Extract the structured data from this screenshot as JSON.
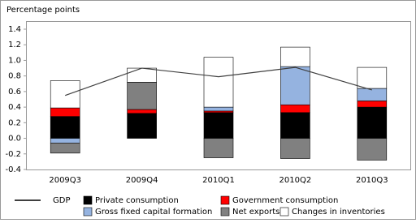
{
  "chart_data": {
    "type": "bar",
    "y_label": "Percentage points",
    "categories": [
      "2009Q3",
      "2009Q4",
      "2010Q1",
      "2010Q2",
      "2010Q3"
    ],
    "series": [
      {
        "name": "Private consumption",
        "color": "#000000",
        "values": [
          0.28,
          0.32,
          0.33,
          0.33,
          0.4
        ]
      },
      {
        "name": "Government  consumption",
        "color": "#ff0000",
        "values": [
          0.11,
          0.05,
          0.02,
          0.1,
          0.08
        ]
      },
      {
        "name": "Gross fixed capital formation",
        "color": "#95b3e0",
        "values": [
          -0.06,
          0,
          0.05,
          0.49,
          0.16
        ]
      },
      {
        "name": "Net exports",
        "color": "#808080",
        "values": [
          -0.13,
          0.35,
          -0.25,
          -0.26,
          -0.28
        ]
      },
      {
        "name": "Changes  in inventories",
        "color": "#ffffff",
        "values": [
          0.35,
          0.18,
          0.64,
          0.25,
          0.27
        ]
      },
      {
        "name": "GDP",
        "type": "line",
        "color": "#404040",
        "values": [
          0.55,
          0.9,
          0.79,
          0.91,
          0.62
        ]
      }
    ],
    "ylim": [
      -0.4,
      1.4
    ],
    "yticks": [
      1.4,
      1.2,
      {
        "value": 1,
        "label": "1.0"
      },
      0.8,
      0.6,
      0.4,
      0.2,
      {
        "value": 0,
        "label": "0.0"
      },
      -0.2,
      -0.4
    ],
    "grid": false
  }
}
